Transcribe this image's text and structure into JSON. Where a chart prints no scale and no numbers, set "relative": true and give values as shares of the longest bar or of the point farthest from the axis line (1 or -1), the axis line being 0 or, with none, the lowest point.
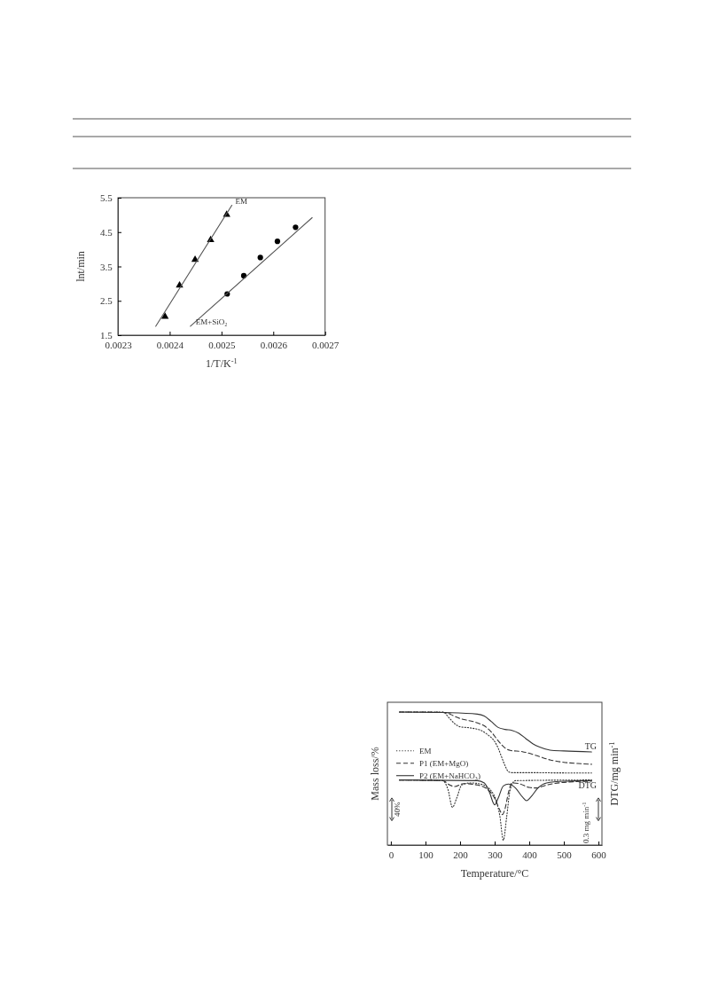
{
  "chart_data": [
    {
      "type": "scatter",
      "xlabel": "1/T/K$^{-1}$",
      "ylabel": "lnt/min",
      "xlim": [
        0.0023,
        0.0027
      ],
      "xticks": [
        0.0023,
        0.0024,
        0.0025,
        0.0026,
        0.0027
      ],
      "ylim": [
        1.5,
        5.5
      ],
      "yticks": [
        1.5,
        2.5,
        3.5,
        4.5,
        5.5
      ],
      "grid": false,
      "legend": false,
      "series": [
        {
          "marker": "triangle",
          "color": "#000000",
          "x": [
            0.002391,
            0.002419,
            0.002449,
            0.002479,
            0.00251
          ],
          "values": [
            2.04,
            2.95,
            3.7,
            4.27,
            5.01
          ]
        },
        {
          "marker": "circle",
          "color": "#000000",
          "x": [
            0.002511,
            0.002543,
            0.002575,
            0.002608,
            0.002643
          ],
          "values": [
            2.7,
            3.23,
            3.76,
            4.23,
            4.64
          ]
        },
        {
          "type": "line",
          "name": "EM",
          "color": "#555555",
          "line_style": "solid",
          "x": [
            0.002373,
            0.00252
          ],
          "values": [
            1.76,
            5.28
          ]
        },
        {
          "type": "line",
          "name": "EM+SiO₂",
          "color": "#555555",
          "line_style": "solid",
          "x": [
            0.00244,
            0.002675
          ],
          "values": [
            1.76,
            4.92
          ]
        }
      ]
    },
    {
      "type": "line",
      "relative": true,
      "xlabel": "Temperature/°C",
      "ylabel": "Mass loss/%",
      "y2label": "DTG/mg min$^{-1}$",
      "xlim": [
        -10,
        610
      ],
      "xticks": [
        0,
        100,
        200,
        300,
        400,
        500,
        600
      ],
      "grid": false,
      "legend": "left",
      "marker": "none",
      "annotations": [
        "TG",
        "DTG",
        "40%",
        "0.3 mg min$^{-1}$"
      ],
      "series": [
        {
          "name": "EM",
          "color": "#333333",
          "line_style": "dotted",
          "x": [
            25,
            150,
            170,
            185,
            200,
            230,
            260,
            280,
            300,
            310,
            320,
            330,
            340,
            350,
            400,
            500,
            580
          ],
          "values": [
            1.0,
            1.0,
            0.951,
            0.911,
            0.889,
            0.88,
            0.862,
            0.829,
            0.778,
            0.729,
            0.662,
            0.596,
            0.551,
            0.544,
            0.544,
            0.542,
            0.542
          ]
        },
        {
          "name": "P1 (EM+MgO)",
          "color": "#333333",
          "line_style": "dashed",
          "x": [
            25,
            150,
            200,
            250,
            270,
            290,
            310,
            330,
            345,
            380,
            420,
            460,
            500,
            540,
            580
          ],
          "values": [
            1.0,
            0.998,
            0.951,
            0.918,
            0.896,
            0.851,
            0.784,
            0.729,
            0.711,
            0.702,
            0.673,
            0.64,
            0.622,
            0.613,
            0.607
          ]
        },
        {
          "name": "P2 (EM+NaHCO₃)",
          "color": "#333333",
          "line_style": "solid",
          "x": [
            25,
            150,
            250,
            270,
            290,
            310,
            330,
            350,
            370,
            390,
            410,
            430,
            460,
            500,
            580
          ],
          "values": [
            1.0,
            0.996,
            0.984,
            0.969,
            0.929,
            0.884,
            0.869,
            0.862,
            0.84,
            0.8,
            0.762,
            0.736,
            0.713,
            0.707,
            0.7
          ]
        },
        {
          "color": "#333333",
          "line_style": "dotted",
          "x": [
            25,
            150,
            165,
            178,
            190,
            205,
            230,
            260,
            290,
            305,
            315,
            325,
            335,
            345,
            360,
            580
          ],
          "values": [
            0.489,
            0.484,
            0.418,
            0.284,
            0.351,
            0.451,
            0.467,
            0.458,
            0.407,
            0.329,
            0.218,
            0.036,
            0.218,
            0.418,
            0.484,
            0.489
          ]
        },
        {
          "color": "#333333",
          "line_style": "dashed",
          "x": [
            25,
            150,
            170,
            185,
            210,
            250,
            280,
            300,
            315,
            322,
            330,
            340,
            350,
            370,
            400,
            420,
            450,
            500,
            580
          ],
          "values": [
            0.489,
            0.484,
            0.451,
            0.44,
            0.462,
            0.451,
            0.418,
            0.351,
            0.262,
            0.229,
            0.273,
            0.396,
            0.467,
            0.462,
            0.433,
            0.429,
            0.451,
            0.471,
            0.48
          ]
        },
        {
          "color": "#333333",
          "line_style": "solid",
          "x": [
            25,
            250,
            270,
            285,
            300,
            310,
            325,
            340,
            360,
            380,
            392,
            405,
            425,
            450,
            500,
            580
          ],
          "values": [
            0.489,
            0.484,
            0.467,
            0.396,
            0.302,
            0.351,
            0.444,
            0.458,
            0.429,
            0.362,
            0.333,
            0.362,
            0.429,
            0.467,
            0.48,
            0.484
          ]
        }
      ]
    }
  ]
}
